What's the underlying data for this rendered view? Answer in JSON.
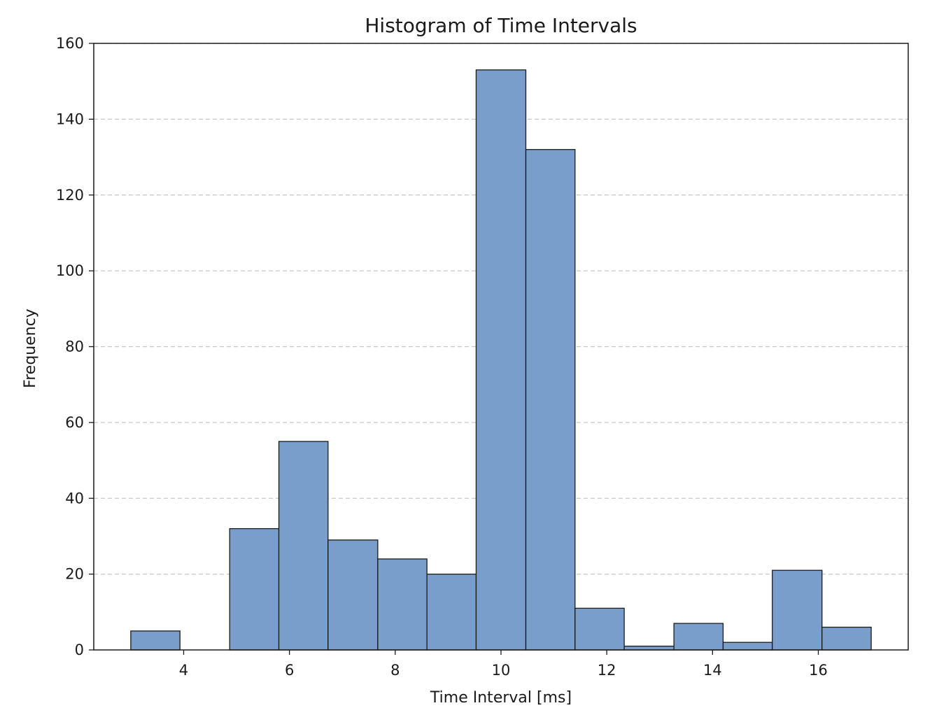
{
  "chart_data": {
    "type": "bar",
    "title": "Histogram of Time Intervals",
    "xlabel": "Time Interval [ms]",
    "ylabel": "Frequency",
    "xlim": [
      2.3,
      17.7
    ],
    "ylim": [
      0,
      160
    ],
    "xticks": [
      4,
      6,
      8,
      10,
      12,
      14,
      16
    ],
    "yticks": [
      0,
      20,
      40,
      60,
      80,
      100,
      120,
      140,
      160
    ],
    "grid": "y-dashed",
    "bar_color": "#7a9ecb",
    "edge_color": "#1a1a1a",
    "bin_edges": [
      3.0,
      3.93,
      4.87,
      5.8,
      6.73,
      7.67,
      8.6,
      9.53,
      10.47,
      11.4,
      12.33,
      13.27,
      14.2,
      15.13,
      16.07,
      17.0
    ],
    "values": [
      5,
      0,
      32,
      55,
      29,
      24,
      20,
      153,
      132,
      11,
      1,
      7,
      2,
      21,
      6
    ]
  }
}
